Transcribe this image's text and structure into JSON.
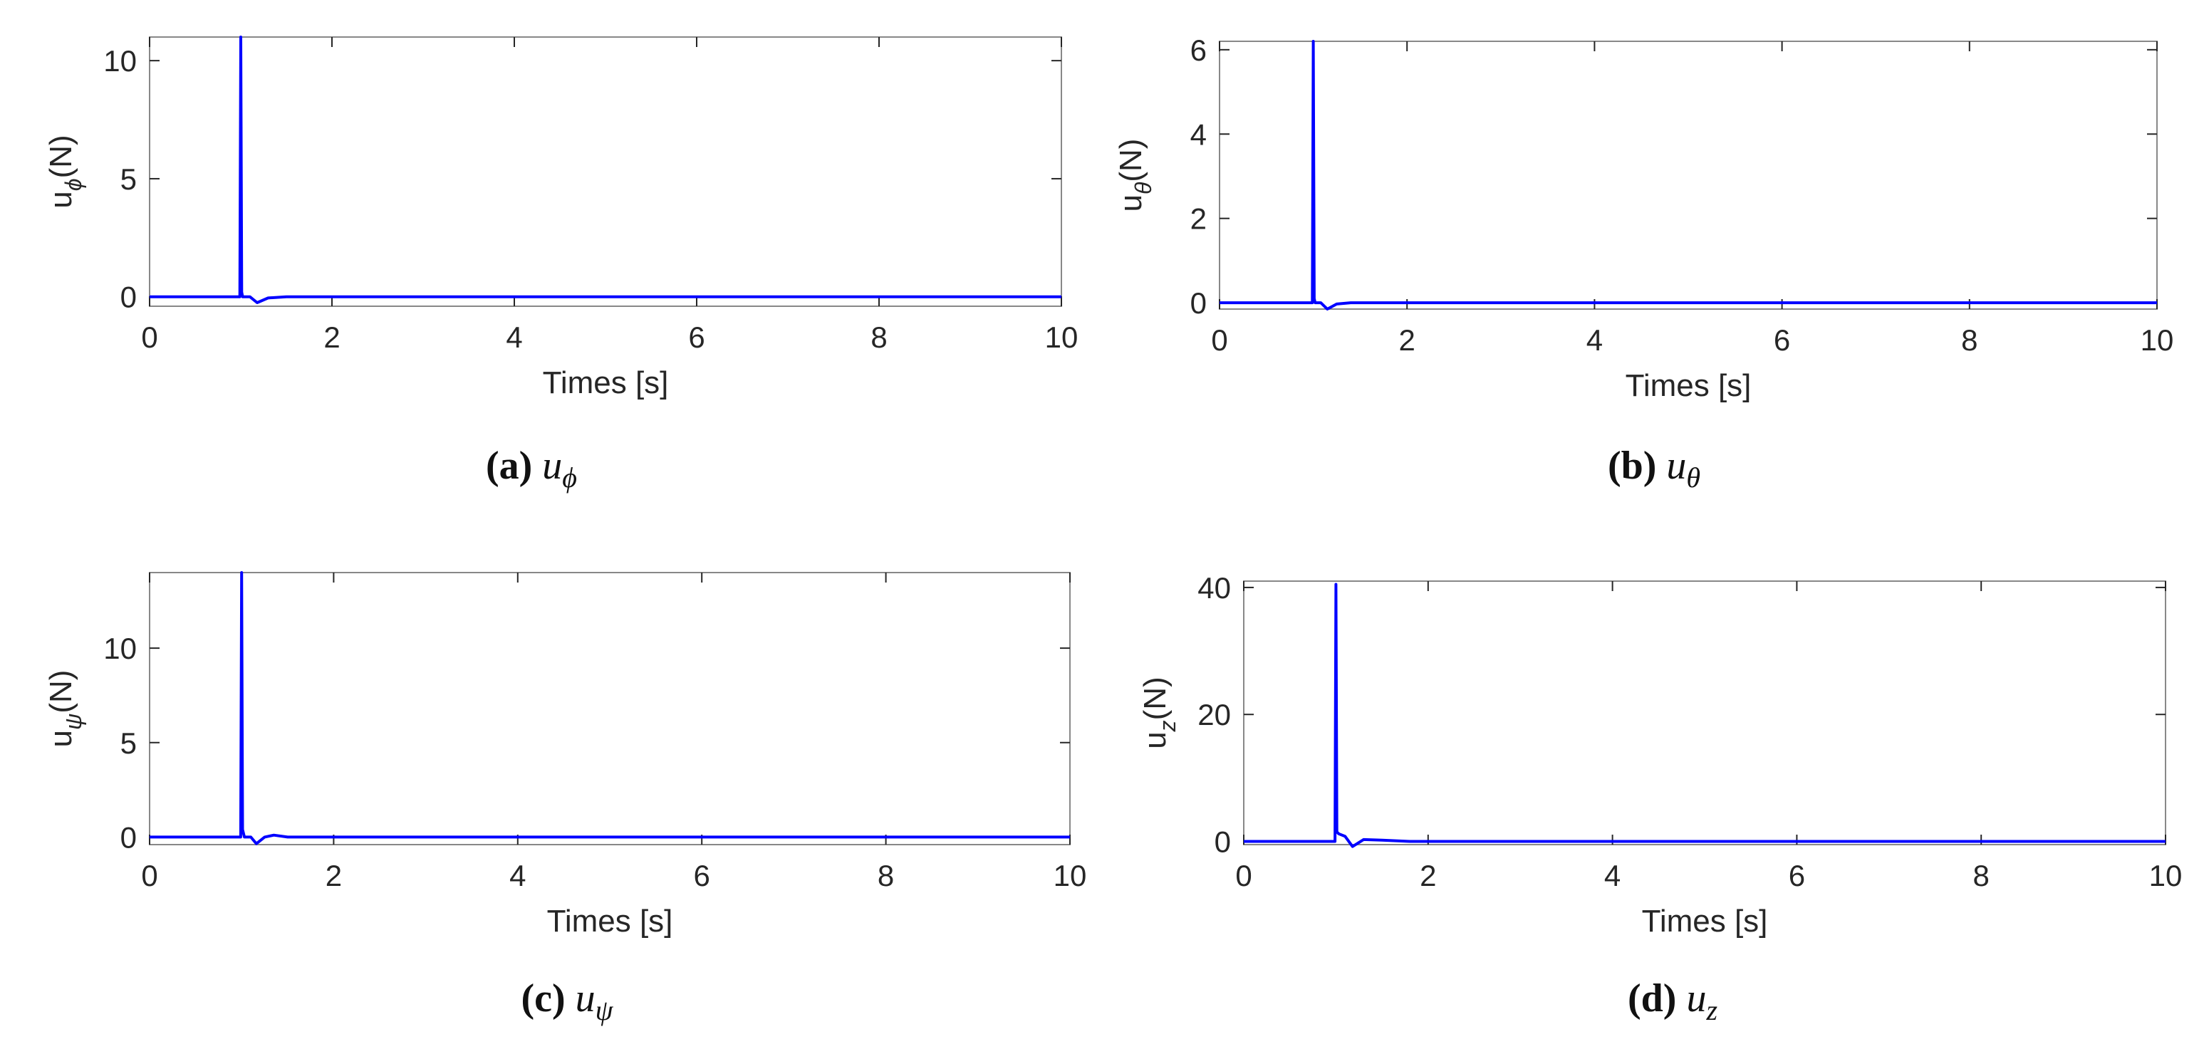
{
  "colors": {
    "series": "#0000ff",
    "axis": "#262626",
    "box": "#888888"
  },
  "charts": [
    {
      "id": "a",
      "caption": {
        "letter": "(a)",
        "symbol": "u",
        "sub": "ϕ"
      },
      "chart_data": {
        "type": "line",
        "xlabel": "Times [s]",
        "ylabel_main": "u",
        "ylabel_sub": "ϕ",
        "ylabel_tail": "(N)",
        "xlim": [
          0,
          10
        ],
        "ylim": [
          -0.4,
          11
        ],
        "xticks": [
          0,
          2,
          4,
          6,
          8,
          10
        ],
        "yticks": [
          0,
          5,
          10
        ],
        "series": [
          {
            "x": [
              0,
              0.99,
              1.0,
              1.01,
              1.02,
              1.1,
              1.18,
              1.3,
              1.5,
              10
            ],
            "y": [
              0,
              0,
              11,
              0.2,
              0,
              0,
              -0.25,
              -0.05,
              0,
              0
            ]
          }
        ]
      }
    },
    {
      "id": "b",
      "caption": {
        "letter": "(b)",
        "symbol": "u",
        "sub": "θ"
      },
      "chart_data": {
        "type": "line",
        "xlabel": "Times [s]",
        "ylabel_main": "u",
        "ylabel_sub": "θ",
        "ylabel_tail": "(N)",
        "xlim": [
          0,
          10
        ],
        "ylim": [
          -0.15,
          6.2
        ],
        "xticks": [
          0,
          2,
          4,
          6,
          8,
          10
        ],
        "yticks": [
          0,
          2,
          4,
          6
        ],
        "series": [
          {
            "x": [
              0,
              0.99,
              1.0,
              1.01,
              1.02,
              1.08,
              1.15,
              1.25,
              1.4,
              10
            ],
            "y": [
              0,
              0,
              6.2,
              0.1,
              0,
              0,
              -0.15,
              -0.03,
              0,
              0
            ]
          }
        ]
      }
    },
    {
      "id": "c",
      "caption": {
        "letter": "(c)",
        "symbol": "u",
        "sub": "ψ"
      },
      "chart_data": {
        "type": "line",
        "xlabel": "Times [s]",
        "ylabel_main": "u",
        "ylabel_sub": "ψ",
        "ylabel_tail": "(N)",
        "xlim": [
          0,
          10
        ],
        "ylim": [
          -0.4,
          14
        ],
        "xticks": [
          0,
          2,
          4,
          6,
          8,
          10
        ],
        "yticks": [
          0,
          5,
          10
        ],
        "series": [
          {
            "x": [
              0,
              0.99,
              1.0,
              1.01,
              1.03,
              1.1,
              1.16,
              1.25,
              1.35,
              1.5,
              10
            ],
            "y": [
              0,
              0,
              14,
              0.4,
              0,
              0,
              -0.35,
              0,
              0.1,
              0,
              0
            ]
          }
        ]
      }
    },
    {
      "id": "d",
      "caption": {
        "letter": "(d)",
        "symbol": "u",
        "sub": "z"
      },
      "chart_data": {
        "type": "line",
        "xlabel": "Times [s]",
        "ylabel_main": "u",
        "ylabel_sub": "z",
        "ylabel_tail": "(N)",
        "xlim": [
          0,
          10
        ],
        "ylim": [
          -0.5,
          41
        ],
        "xticks": [
          0,
          2,
          4,
          6,
          8,
          10
        ],
        "yticks": [
          0,
          20,
          40
        ],
        "series": [
          {
            "x": [
              0,
              0.99,
              1.0,
              1.01,
              1.03,
              1.1,
              1.18,
              1.3,
              1.5,
              1.8,
              10
            ],
            "y": [
              0,
              0,
              40.5,
              1.5,
              1.2,
              0.8,
              -0.8,
              0.3,
              0.2,
              0,
              0
            ]
          }
        ]
      }
    }
  ]
}
